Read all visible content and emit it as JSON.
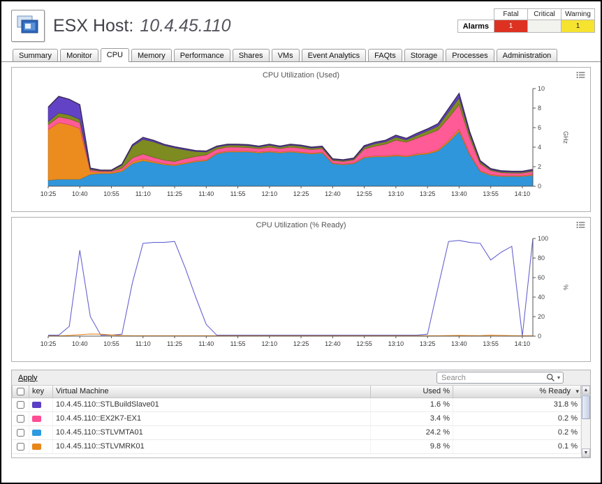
{
  "header": {
    "title_prefix": "ESX Host:",
    "title_value": "10.4.45.110",
    "alarms": {
      "label": "Alarms",
      "columns": [
        "Fatal",
        "Critical",
        "Warning"
      ],
      "counts": {
        "fatal": "1",
        "critical": "",
        "warning": "1"
      },
      "colors": {
        "fatal": "#dd3222",
        "critical": "#f2f2ee",
        "warning": "#f6e330"
      }
    }
  },
  "tabs": {
    "active": "CPU",
    "items": [
      "Summary",
      "Monitor",
      "CPU",
      "Memory",
      "Performance",
      "Shares",
      "VMs",
      "Event Analytics",
      "FAQts",
      "Storage",
      "Processes",
      "Administration"
    ]
  },
  "chart_data": [
    {
      "type": "area",
      "stacked": true,
      "title": "CPU Utilization (Used)",
      "xlabel": "",
      "ylabel": "GHz",
      "ylim": [
        0,
        10
      ],
      "yticks": [
        0,
        2,
        4,
        6,
        8,
        10
      ],
      "points_per_tick": 3,
      "x_labels": [
        "10:25",
        "10:40",
        "10:55",
        "11:10",
        "11:25",
        "11:40",
        "11:55",
        "12:10",
        "12:25",
        "12:40",
        "12:55",
        "13:10",
        "13:25",
        "13:40",
        "13:55",
        "14:10"
      ],
      "outline": "#3a2a55",
      "legend": "none",
      "series": [
        {
          "name": "10.4.45.110::STLVMTA01",
          "color": "#2f96dc",
          "stroke": "#1f6fa8",
          "values": [
            0.6,
            0.7,
            0.7,
            0.7,
            1.2,
            1.3,
            1.3,
            1.5,
            2.3,
            2.6,
            2.4,
            2.2,
            2.1,
            2.3,
            2.5,
            2.6,
            3.3,
            3.5,
            3.5,
            3.5,
            3.4,
            3.5,
            3.4,
            3.5,
            3.4,
            3.3,
            3.4,
            2.3,
            2.2,
            2.3,
            2.9,
            3.0,
            3.0,
            3.1,
            3.0,
            3.2,
            3.3,
            3.6,
            4.5,
            5.6,
            3.2,
            1.5,
            1.1,
            1.0,
            1.0,
            1.0,
            1.1
          ]
        },
        {
          "name": "10.4.45.110::STLVMRK01",
          "color": "#ec8c1e",
          "stroke": "#b06a12",
          "values": [
            5.2,
            5.8,
            5.6,
            5.2,
            0.3,
            0.15,
            0.15,
            0.15,
            0.2,
            0.2,
            0.15,
            0.12,
            0.12,
            0.12,
            0.1,
            0.1,
            0.1,
            0.1,
            0.1,
            0.1,
            0.1,
            0.1,
            0.1,
            0.1,
            0.1,
            0.1,
            0.1,
            0.08,
            0.08,
            0.08,
            0.1,
            0.1,
            0.1,
            0.12,
            0.1,
            0.12,
            0.12,
            0.15,
            0.2,
            0.25,
            0.15,
            0.1,
            0.1,
            0.08,
            0.08,
            0.08,
            0.1
          ]
        },
        {
          "name": "10.4.45.110::EX2K7-EX1",
          "color": "#ff5b97",
          "stroke": "#d23c74",
          "values": [
            0.5,
            0.6,
            0.6,
            0.6,
            0.15,
            0.1,
            0.1,
            0.2,
            0.4,
            0.5,
            0.4,
            0.35,
            0.3,
            0.4,
            0.45,
            0.5,
            0.4,
            0.4,
            0.4,
            0.35,
            0.35,
            0.4,
            0.35,
            0.4,
            0.4,
            0.35,
            0.35,
            0.25,
            0.25,
            0.3,
            0.8,
            1.0,
            1.2,
            1.5,
            1.4,
            1.6,
            1.9,
            2.0,
            2.3,
            2.5,
            1.6,
            0.7,
            0.4,
            0.3,
            0.25,
            0.25,
            0.3
          ]
        },
        {
          "name": "(olive series)",
          "color": "#7d8b21",
          "stroke": "#5a660f",
          "values": [
            0.3,
            0.4,
            0.4,
            0.35,
            0.1,
            0.05,
            0.05,
            0.3,
            1.2,
            1.5,
            1.6,
            1.5,
            1.4,
            0.9,
            0.5,
            0.3,
            0.2,
            0.2,
            0.2,
            0.2,
            0.15,
            0.2,
            0.15,
            0.2,
            0.2,
            0.15,
            0.15,
            0.1,
            0.1,
            0.1,
            0.2,
            0.25,
            0.25,
            0.3,
            0.25,
            0.3,
            0.35,
            0.4,
            0.6,
            0.7,
            0.4,
            0.2,
            0.1,
            0.1,
            0.1,
            0.1,
            0.1
          ]
        },
        {
          "name": "10.4.45.110::STLBuildSlave01",
          "color": "#6243c6",
          "stroke": "#43288f",
          "values": [
            1.5,
            1.7,
            1.6,
            1.5,
            0.1,
            0.05,
            0.05,
            0.1,
            0.15,
            0.2,
            0.15,
            0.12,
            0.12,
            0.12,
            0.1,
            0.1,
            0.1,
            0.1,
            0.1,
            0.1,
            0.1,
            0.1,
            0.1,
            0.1,
            0.1,
            0.1,
            0.1,
            0.08,
            0.08,
            0.1,
            0.15,
            0.15,
            0.15,
            0.2,
            0.15,
            0.2,
            0.2,
            0.25,
            0.35,
            0.45,
            0.25,
            0.12,
            0.1,
            0.1,
            0.1,
            0.1,
            0.12
          ]
        }
      ]
    },
    {
      "type": "line",
      "stacked": false,
      "title": "CPU Utilization (% Ready)",
      "xlabel": "",
      "ylabel": "%",
      "ylim": [
        0,
        100
      ],
      "yticks": [
        0,
        20,
        40,
        60,
        80,
        100
      ],
      "points_per_tick": 3,
      "x_labels": [
        "10:25",
        "10:40",
        "10:55",
        "11:10",
        "11:25",
        "11:40",
        "11:55",
        "12:10",
        "12:25",
        "12:40",
        "12:55",
        "13:10",
        "13:25",
        "13:40",
        "13:55",
        "14:10"
      ],
      "legend": "none",
      "series": [
        {
          "name": "ready-line-primary",
          "color": "#6663cf",
          "values": [
            1,
            1,
            10,
            88,
            20,
            1,
            1,
            2,
            55,
            95,
            96,
            96,
            97,
            70,
            40,
            12,
            1,
            1,
            1,
            1,
            1,
            1,
            1,
            1,
            1,
            1,
            1,
            1,
            1,
            1,
            1,
            1,
            1,
            1,
            1,
            1,
            2,
            50,
            97,
            98,
            96,
            95,
            78,
            86,
            92,
            0,
            100
          ]
        },
        {
          "name": "ready-line-orange",
          "color": "#e8871e",
          "values": [
            0.3,
            0.3,
            0.8,
            1.5,
            2.2,
            2.0,
            1.2,
            0.6,
            0.4,
            0.4,
            0.4,
            0.4,
            0.4,
            0.4,
            0.4,
            0.4,
            0.4,
            0.4,
            0.4,
            0.4,
            0.4,
            0.4,
            0.4,
            0.4,
            0.4,
            0.4,
            0.4,
            0.4,
            0.4,
            0.4,
            0.4,
            0.4,
            0.4,
            0.4,
            0.4,
            0.4,
            0.4,
            0.4,
            0.6,
            0.8,
            0.6,
            0.5,
            1.0,
            0.8,
            0.5,
            0.4,
            0.4
          ]
        }
      ]
    }
  ],
  "toolbar": {
    "apply_label": "Apply",
    "search_placeholder": "Search"
  },
  "table": {
    "columns": [
      "key",
      "Virtual Machine",
      "Used %",
      "% Ready"
    ],
    "rows": [
      {
        "color": "#5b3fc4",
        "vm": "10.4.45.110::STLBuildSlave01",
        "used": "1.6 %",
        "ready": "31.8 %"
      },
      {
        "color": "#ff4d94",
        "vm": "10.4.45.110::EX2K7-EX1",
        "used": "3.4 %",
        "ready": "0.2 %"
      },
      {
        "color": "#2e9ae0",
        "vm": "10.4.45.110::STLVMTA01",
        "used": "24.2 %",
        "ready": "0.2 %"
      },
      {
        "color": "#e8861a",
        "vm": "10.4.45.110::STLVMRK01",
        "used": "9.8 %",
        "ready": "0.1 %"
      }
    ]
  }
}
